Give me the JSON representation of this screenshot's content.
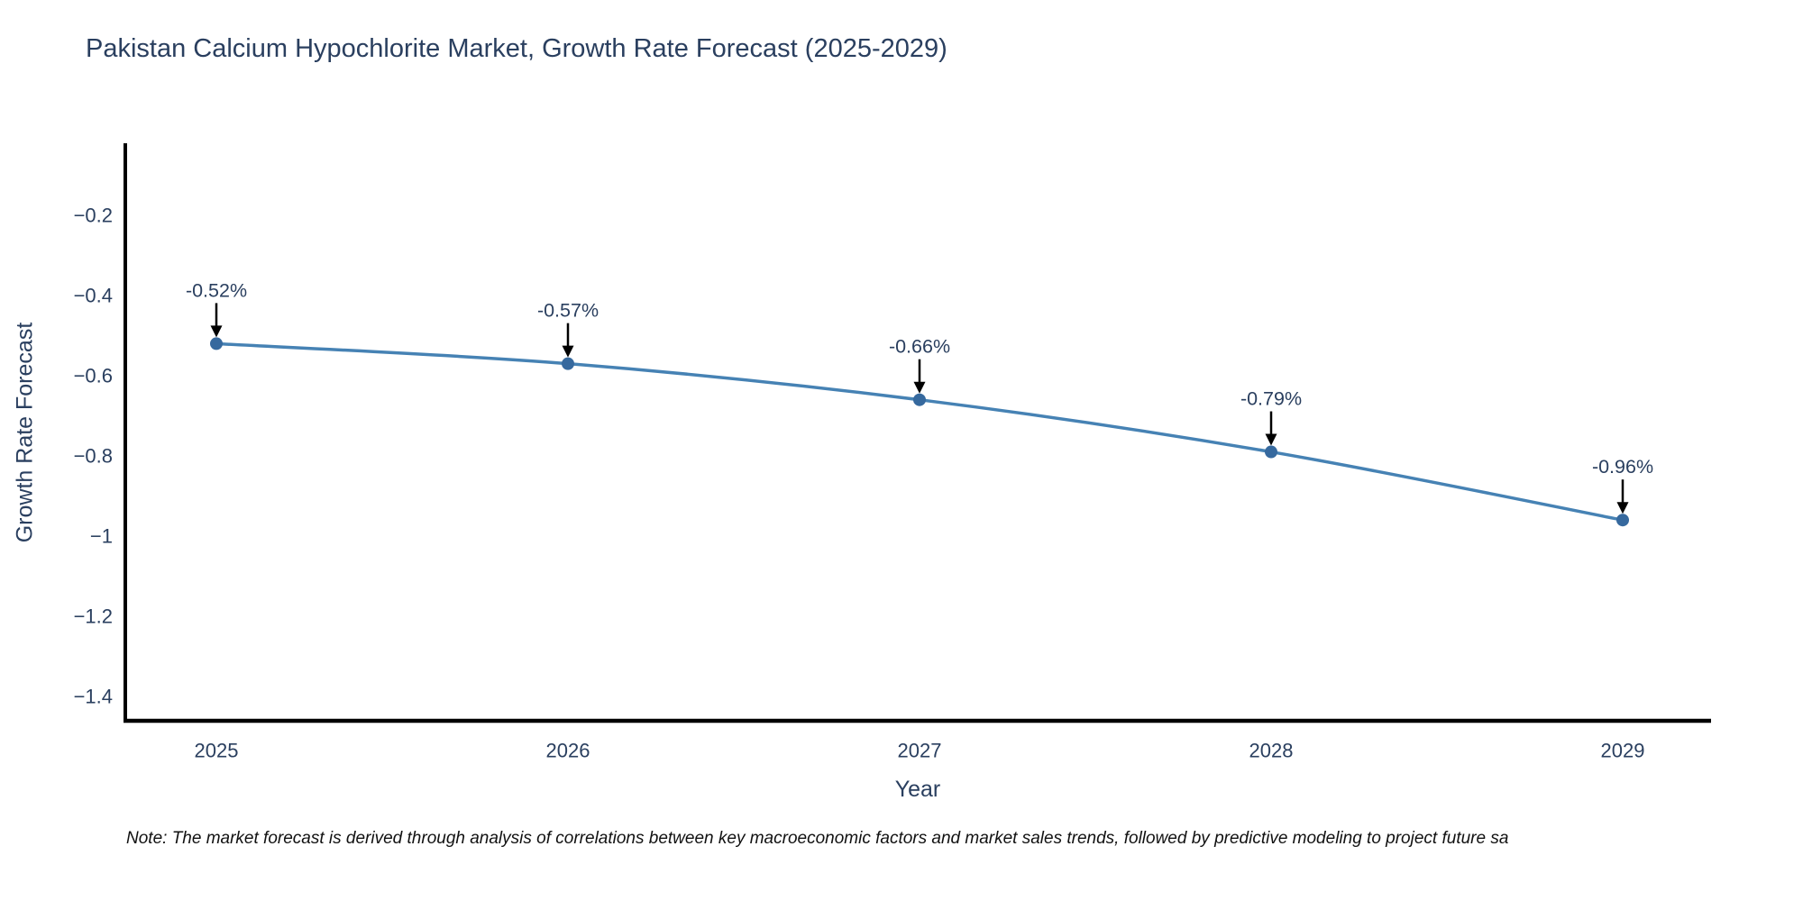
{
  "chart_data": {
    "type": "line",
    "title": "Pakistan Calcium Hypochlorite Market, Growth Rate Forecast (2025-2029)",
    "xlabel": "Year",
    "ylabel": "Growth Rate Forecast",
    "x": [
      2025,
      2026,
      2027,
      2028,
      2029
    ],
    "values": [
      -0.52,
      -0.57,
      -0.66,
      -0.79,
      -0.96
    ],
    "point_labels": [
      "-0.52%",
      "-0.57%",
      "-0.66%",
      "-0.79%",
      "-0.96%"
    ],
    "xtick_labels": [
      "2025",
      "2026",
      "2027",
      "2028",
      "2029"
    ],
    "yticks": [
      -0.2,
      -0.4,
      -0.6,
      -0.8,
      -1,
      -1.2,
      -1.4
    ],
    "ytick_labels": [
      "−0.2",
      "−0.4",
      "−0.6",
      "−0.8",
      "−1",
      "−1.2",
      "−1.4"
    ],
    "ylim": [
      -1.46,
      -0.03
    ],
    "grid": false,
    "legend": "none",
    "line_color": "#4682b4",
    "marker_color": "#36699e",
    "arrow_color": "#000000",
    "text_color": "#2a3f5f",
    "axis_color": "#000000"
  },
  "note": "Note: The market forecast is derived through analysis of correlations between key macroeconomic factors and market sales trends, followed by predictive modeling to project future sa"
}
